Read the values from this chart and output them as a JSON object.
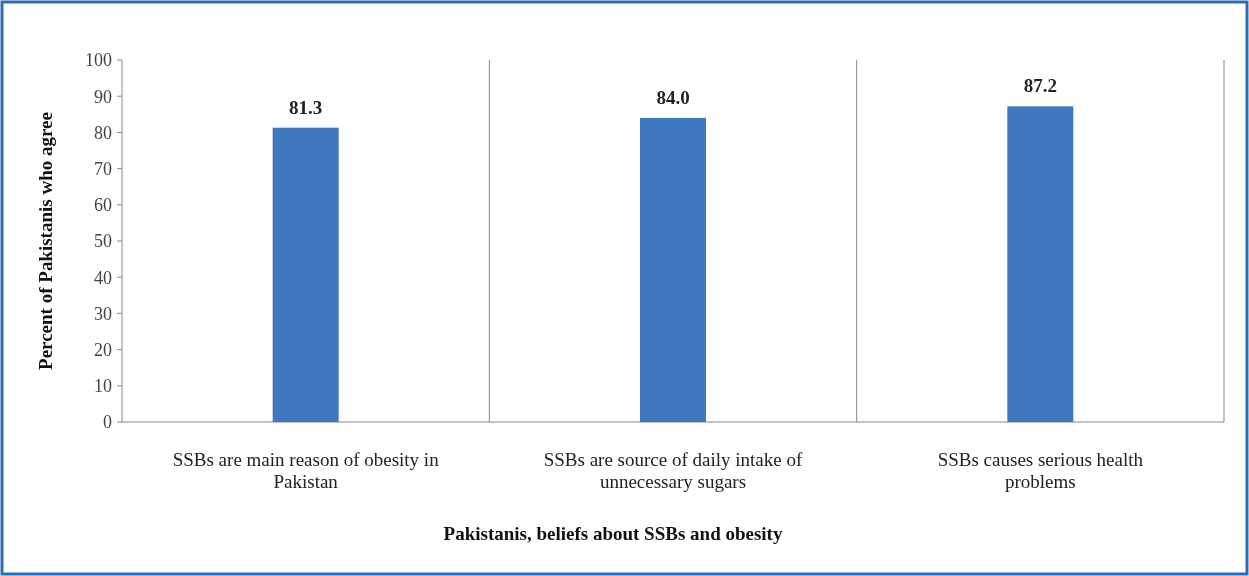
{
  "chart_data": {
    "type": "bar",
    "xlabel": "Pakistanis, beliefs about SSBs and obesity",
    "ylabel": "Percent of Pakistanis who agree",
    "categories": [
      "SSBs are main reason of obesity in Pakistan",
      "SSBs are source of daily intake of unnecessary sugars",
      "SSBs causes serious health problems"
    ],
    "values": [
      81.3,
      84.0,
      87.2
    ],
    "color": "#3f78be",
    "value_labels": [
      "81.3",
      "84.0",
      "87.2"
    ],
    "ylim": [
      0,
      100
    ],
    "yticks": [
      0,
      10,
      20,
      30,
      40,
      50,
      60,
      70,
      80,
      90,
      100
    ],
    "grid": "x"
  }
}
